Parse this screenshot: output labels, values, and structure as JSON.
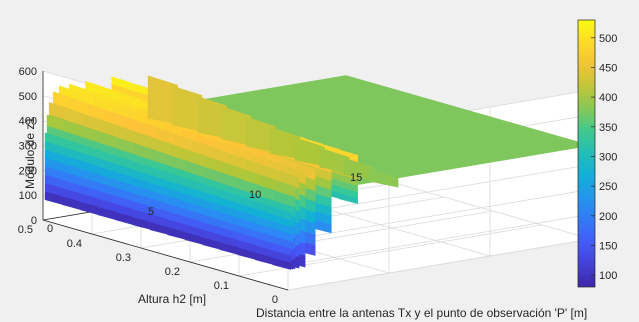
{
  "chart_data": {
    "type": "surface",
    "xlabel": "Distancia entre la antenas Tx y el punto de observación 'P' [m]",
    "ylabel": "Altura h2 [m]",
    "zlabel": "Módulo de z1",
    "x_ticks": [
      "0",
      "5",
      "10",
      "15"
    ],
    "y_ticks": [
      "0",
      "0.1",
      "0.2",
      "0.3",
      "0.4",
      "0.5"
    ],
    "z_ticks": [
      "0",
      "100",
      "200",
      "300",
      "400",
      "500",
      "600"
    ],
    "colorbar_ticks": [
      "100",
      "150",
      "200",
      "250",
      "300",
      "350",
      "400",
      "450",
      "500"
    ],
    "xlim": [
      0,
      15
    ],
    "ylim": [
      0,
      0.5
    ],
    "zlim": [
      0,
      600
    ],
    "clim": [
      80,
      530
    ],
    "colormap": "parula",
    "grid": true,
    "plateau_value": 376.7,
    "ridges": [
      {
        "x": 0.1,
        "z_min": 80,
        "z_max": 350
      },
      {
        "x": 0.2,
        "z_min": 80,
        "z_max": 420
      },
      {
        "x": 0.3,
        "z_min": 80,
        "z_max": 470
      },
      {
        "x": 0.5,
        "z_min": 80,
        "z_max": 510
      },
      {
        "x": 0.8,
        "z_min": 80,
        "z_max": 530
      },
      {
        "x": 1.3,
        "z_min": 120,
        "z_max": 530
      },
      {
        "x": 2.1,
        "z_min": 200,
        "z_max": 530
      },
      {
        "x": 3.4,
        "z_min": 300,
        "z_max": 530
      }
    ],
    "spike": {
      "x": 5.2,
      "z_max": 510
    }
  }
}
